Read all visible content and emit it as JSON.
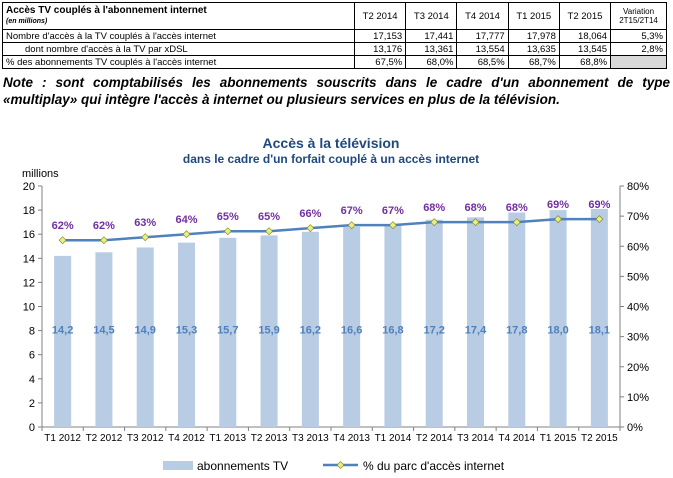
{
  "table": {
    "title": "Accès TV couplés à l'abonnement internet",
    "subtitle": "(en millions)",
    "columns": [
      "T2 2014",
      "T3 2014",
      "T4 2014",
      "T1 2015",
      "T2 2015",
      "Variation 2T15/2T14"
    ],
    "variation_line1": "Variation",
    "variation_line2": "2T15/2T14",
    "rows": [
      {
        "label": "Nombre d'accès à la TV couplés à l'accès internet",
        "values": [
          "17,153",
          "17,441",
          "17,777",
          "17,978",
          "18,064"
        ],
        "variation": "5,3%"
      },
      {
        "label": "dont nombre d'accès à la TV par xDSL",
        "values": [
          "13,176",
          "13,361",
          "13,554",
          "13,635",
          "13,545"
        ],
        "variation": "2,8%"
      },
      {
        "label": "% des abonnements TV couplés à l'accès internet",
        "values": [
          "67,5%",
          "68,0%",
          "68,5%",
          "68,7%",
          "68,8%"
        ],
        "variation": ""
      }
    ]
  },
  "note": "Note : sont comptabilisés les abonnements souscrits dans le cadre d'un abonnement de type «multiplay» qui intègre l'accès à internet ou plusieurs services en plus de la télévision.",
  "chart_data": {
    "type": "bar+line",
    "title": "Accès à la télévision",
    "subtitle": "dans le cadre d'un forfait couplé à un accès internet",
    "ylabel_left": "millions",
    "categories": [
      "T1 2012",
      "T2 2012",
      "T3 2012",
      "T4 2012",
      "T1 2013",
      "T2 2013",
      "T3 2013",
      "T4 2013",
      "T1 2014",
      "T2 2014",
      "T3 2014",
      "T4 2014",
      "T1 2015",
      "T2 2015"
    ],
    "bar_series": {
      "name": "abonnements TV",
      "values": [
        14.2,
        14.5,
        14.9,
        15.3,
        15.7,
        15.9,
        16.2,
        16.6,
        16.8,
        17.2,
        17.4,
        17.8,
        18.0,
        18.1
      ],
      "labels": [
        "14,2",
        "14,5",
        "14,9",
        "15,3",
        "15,7",
        "15,9",
        "16,2",
        "16,6",
        "16,8",
        "17,2",
        "17,4",
        "17,8",
        "18,0",
        "18,1"
      ],
      "color": "#b8cce4"
    },
    "line_series": {
      "name": "% du parc d'accès internet",
      "values": [
        62,
        62,
        63,
        64,
        65,
        65,
        66,
        67,
        67,
        68,
        68,
        68,
        69,
        69
      ],
      "labels": [
        "62%",
        "62%",
        "63%",
        "64%",
        "65%",
        "65%",
        "66%",
        "67%",
        "67%",
        "68%",
        "68%",
        "68%",
        "69%",
        "69%"
      ],
      "color": "#4f81bd",
      "marker_color": "#e6ee8c"
    },
    "ylim_left": [
      0,
      20
    ],
    "yticks_left": [
      "0",
      "2",
      "4",
      "6",
      "8",
      "10",
      "12",
      "14",
      "16",
      "18",
      "20"
    ],
    "ylim_right": [
      0,
      80
    ],
    "yticks_right": [
      "0%",
      "10%",
      "20%",
      "30%",
      "40%",
      "50%",
      "60%",
      "70%",
      "80%"
    ],
    "label_color": "#7030a0",
    "value_label_color": "#4f81bd"
  }
}
